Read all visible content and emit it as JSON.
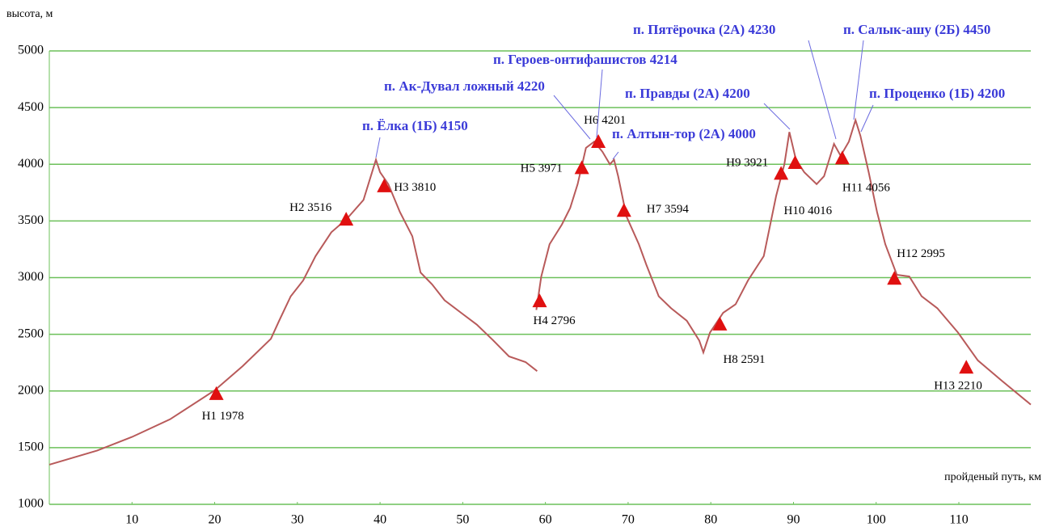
{
  "chart_data": {
    "type": "line",
    "ylabel": "высота, м",
    "xlabel": "пройденый путь, км",
    "xlim": [
      0,
      118.7
    ],
    "ylim": [
      1000,
      5000
    ],
    "xticks": [
      10,
      20,
      30,
      40,
      50,
      60,
      70,
      80,
      90,
      100,
      110
    ],
    "yticks": [
      1000,
      1500,
      2000,
      2500,
      3000,
      3500,
      4000,
      4500,
      5000
    ],
    "grid": true,
    "grid_color": "#6cc05a",
    "line_color": "#b85a5a",
    "marker_color": "#e01010",
    "series": [
      {
        "x": [
          0,
          5.8,
          10,
          14.6,
          20,
          23.4,
          26.8,
          27.8,
          29.2,
          30.7,
          32.2,
          34.1,
          36,
          38,
          39.5,
          40,
          41,
          42.4,
          43.9,
          44.9,
          46.3,
          47.8,
          49.8,
          51.7,
          53.7,
          55.6,
          57.6,
          59
        ],
        "values": [
          1350,
          1475,
          1595,
          1750,
          2005,
          2220,
          2460,
          2620,
          2835,
          2975,
          3190,
          3400,
          3520,
          3685,
          4040,
          3930,
          3825,
          3580,
          3365,
          3045,
          2940,
          2800,
          2690,
          2585,
          2445,
          2305,
          2255,
          2175
        ]
      },
      {
        "x": [
          58.9,
          59.5,
          60.5,
          62,
          63,
          63.9,
          64.9,
          65.9,
          66.9,
          67.8,
          68.3,
          68.8,
          69.8,
          71.3,
          72.2,
          73.7,
          75.2,
          77.1,
          78.6,
          79.1,
          79.9,
          81.5,
          83,
          84.5,
          86.4,
          87.9,
          88.9,
          89.5,
          90.3,
          91.3,
          92.8,
          93.7,
          94.9,
          95.7,
          96.7,
          97.5,
          98.1,
          99.1,
          100.1,
          101.1,
          102.5,
          104,
          105.5,
          107.4,
          109.9,
          112.3,
          115.2,
          118.7
        ],
        "values": [
          2715,
          3010,
          3295,
          3470,
          3615,
          3825,
          4145,
          4200,
          4110,
          4000,
          4040,
          3895,
          3540,
          3295,
          3115,
          2835,
          2730,
          2620,
          2445,
          2340,
          2515,
          2690,
          2765,
          2975,
          3190,
          3720,
          4000,
          4285,
          4040,
          3930,
          3825,
          3895,
          4180,
          4075,
          4200,
          4390,
          4250,
          3930,
          3580,
          3295,
          3025,
          3010,
          2835,
          2730,
          2515,
          2270,
          2090,
          1880
        ]
      }
    ],
    "camps": [
      {
        "label": "Н1",
        "x": 20.2,
        "value": 1978
      },
      {
        "label": "Н2",
        "x": 35.9,
        "value": 3516
      },
      {
        "label": "Н3",
        "x": 40.5,
        "value": 3810
      },
      {
        "label": "Н4",
        "x": 59.3,
        "value": 2796
      },
      {
        "label": "Н5",
        "x": 64.4,
        "value": 3971
      },
      {
        "label": "Н6",
        "x": 66.4,
        "value": 4201
      },
      {
        "label": "Н7",
        "x": 69.5,
        "value": 3594
      },
      {
        "label": "Н8",
        "x": 81.1,
        "value": 2591
      },
      {
        "label": "Н9",
        "x": 88.5,
        "value": 3921
      },
      {
        "label": "Н10",
        "x": 90.2,
        "value": 4016
      },
      {
        "label": "Н11",
        "x": 95.9,
        "value": 4056
      },
      {
        "label": "Н12",
        "x": 102.2,
        "value": 2995
      },
      {
        "label": "Н13",
        "x": 110.9,
        "value": 2210
      }
    ],
    "annotations": [
      "п. Ёлка (1Б) 4150",
      "п. Ак-Дувал ложный 4220",
      "п. Героев-онтифашистов  4214",
      "п. Алтын-тор (2А)  4000",
      "п. Правды (2А) 4200",
      "п. Пятёрочка (2А) 4230",
      "п. Салык-ашу (2Б) 4450",
      "п. Проценко (1Б) 4200"
    ]
  }
}
